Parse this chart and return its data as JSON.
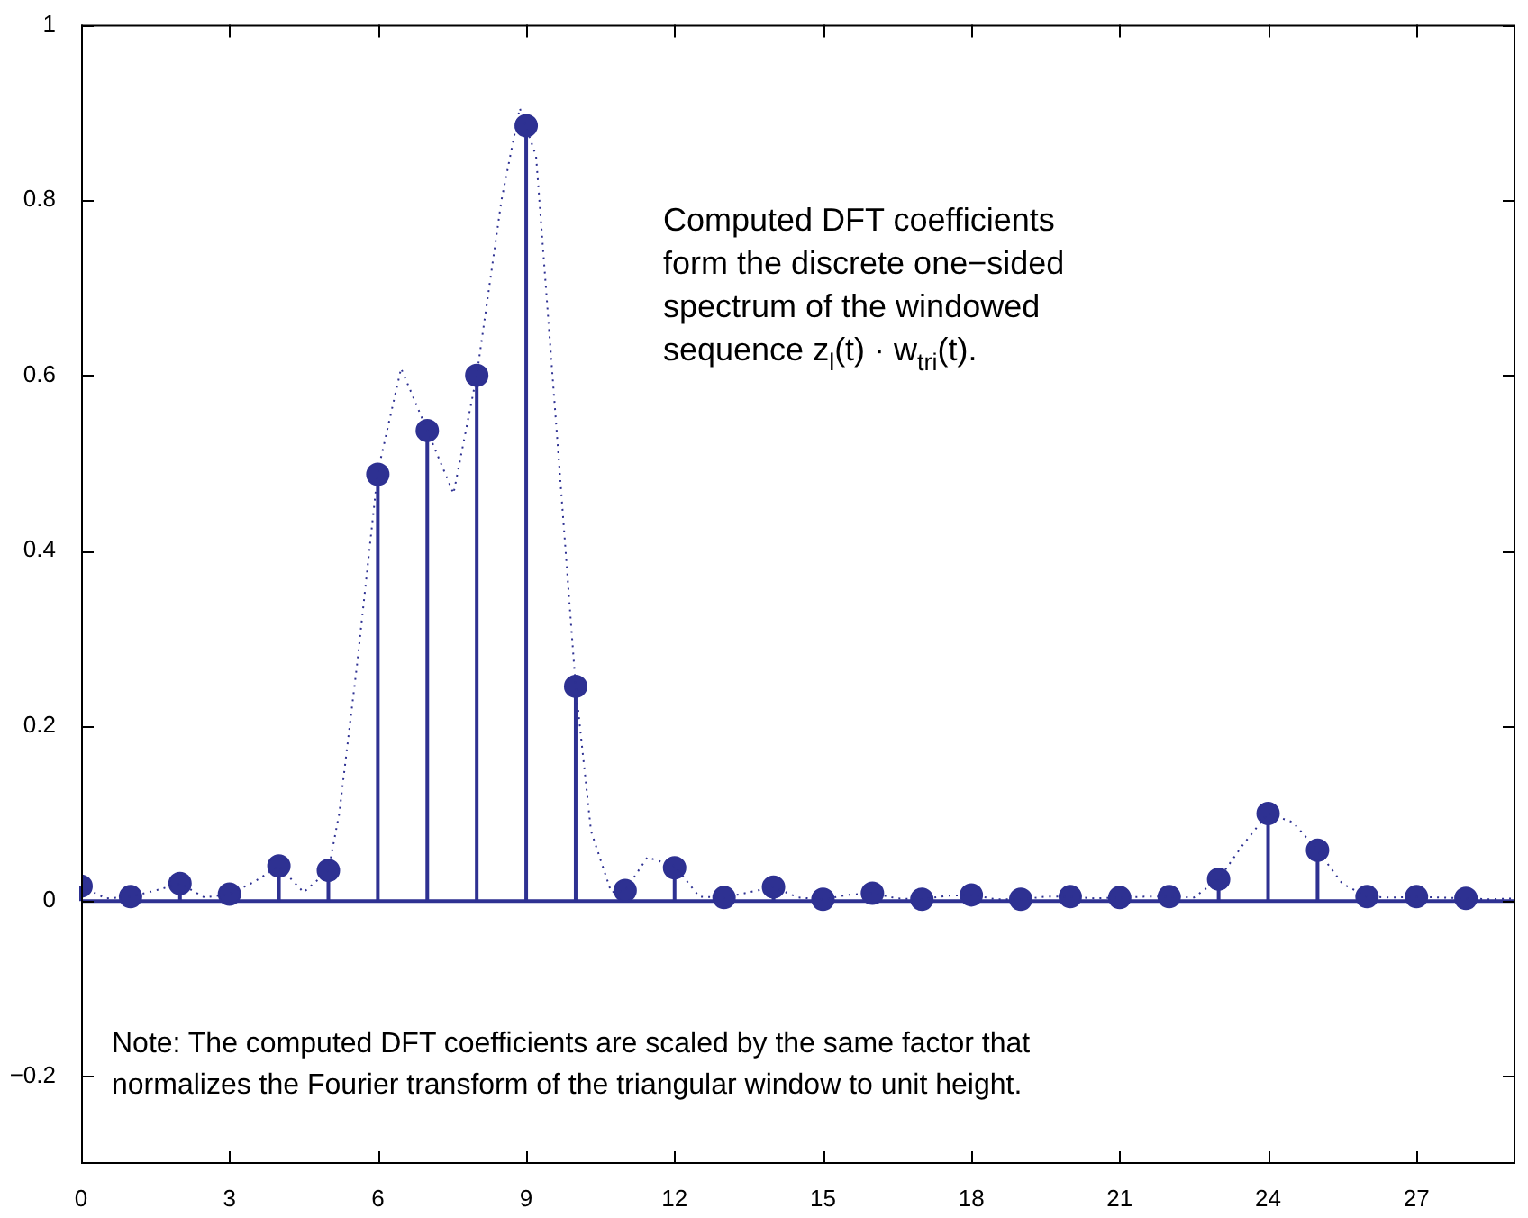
{
  "chart_data": {
    "type": "lollipop",
    "xlim": [
      0,
      29
    ],
    "ylim": [
      -0.3,
      1
    ],
    "xticks": [
      0,
      3,
      6,
      9,
      12,
      15,
      18,
      21,
      24,
      27
    ],
    "yticks": [
      {
        "value": -0.2,
        "label": "−0.2"
      },
      0,
      0.2,
      0.4,
      0.6,
      0.8,
      1
    ],
    "grid": false,
    "legend": false,
    "marker": "circle",
    "series": [
      {
        "type": "line",
        "line_style": "dotted",
        "marker": "none",
        "color": "#2e3192",
        "x": [
          0,
          0.5,
          1,
          1.5,
          2,
          2.5,
          3,
          3.5,
          4,
          4.5,
          5,
          5.22,
          5.58,
          6,
          6.47,
          7,
          7.53,
          8,
          8.5,
          8.87,
          9.2,
          9.77,
          10,
          10.31,
          10.72,
          11,
          11.45,
          12,
          12.5,
          13,
          13.5,
          14,
          14.5,
          15,
          15.5,
          16,
          16.5,
          17,
          17.5,
          18,
          18.5,
          19,
          19.5,
          20,
          20.5,
          21,
          21.5,
          22,
          22.5,
          23,
          23.5,
          24,
          24.5,
          25,
          25.5,
          26,
          26.5,
          27,
          27.5,
          28,
          28.5,
          29
        ],
        "values": [
          0.017,
          0.003,
          0.005,
          0.012,
          0.02,
          0.004,
          0.008,
          0.022,
          0.04,
          0.01,
          0.035,
          0.1,
          0.27,
          0.49,
          0.608,
          0.537,
          0.465,
          0.6,
          0.8,
          0.905,
          0.85,
          0.42,
          0.245,
          0.08,
          0.01,
          0.012,
          0.05,
          0.04,
          0.005,
          0.004,
          0.01,
          0.016,
          0.004,
          0.002,
          0.007,
          0.009,
          0.003,
          0.002,
          0.006,
          0.007,
          0.002,
          0.002,
          0.005,
          0.005,
          0.003,
          0.004,
          0.005,
          0.005,
          0.004,
          0.025,
          0.065,
          0.1,
          0.09,
          0.058,
          0.02,
          0.005,
          0.004,
          0.005,
          0.004,
          0.003,
          0.002,
          0.003
        ]
      },
      {
        "color": "#2e3192",
        "x": [
          0,
          1,
          2,
          3,
          4,
          5,
          6,
          7,
          8,
          9,
          10,
          11,
          12,
          13,
          14,
          15,
          16,
          17,
          18,
          19,
          20,
          21,
          22,
          23,
          24,
          25,
          26,
          27,
          28
        ],
        "values": [
          0.017,
          0.005,
          0.02,
          0.008,
          0.04,
          0.035,
          0.487,
          0.537,
          0.6,
          0.885,
          0.245,
          0.012,
          0.038,
          0.004,
          0.016,
          0.002,
          0.009,
          0.002,
          0.007,
          0.002,
          0.005,
          0.004,
          0.005,
          0.025,
          0.1,
          0.058,
          0.005,
          0.005,
          0.003
        ]
      }
    ],
    "ref_lines": [
      {
        "axis": "y",
        "value": 0,
        "color": "#2e3192"
      }
    ],
    "annotations": [
      "Computed DFT coefficients\nform the discrete one−sided\nspectrum of the windowed\nsequence z$_{l}$(t) · w$_{tri}$(t).",
      "Note: The computed DFT coefficients are scaled by the same factor that\nnormalizes the Fourier transform of the triangular window to unit height."
    ]
  }
}
